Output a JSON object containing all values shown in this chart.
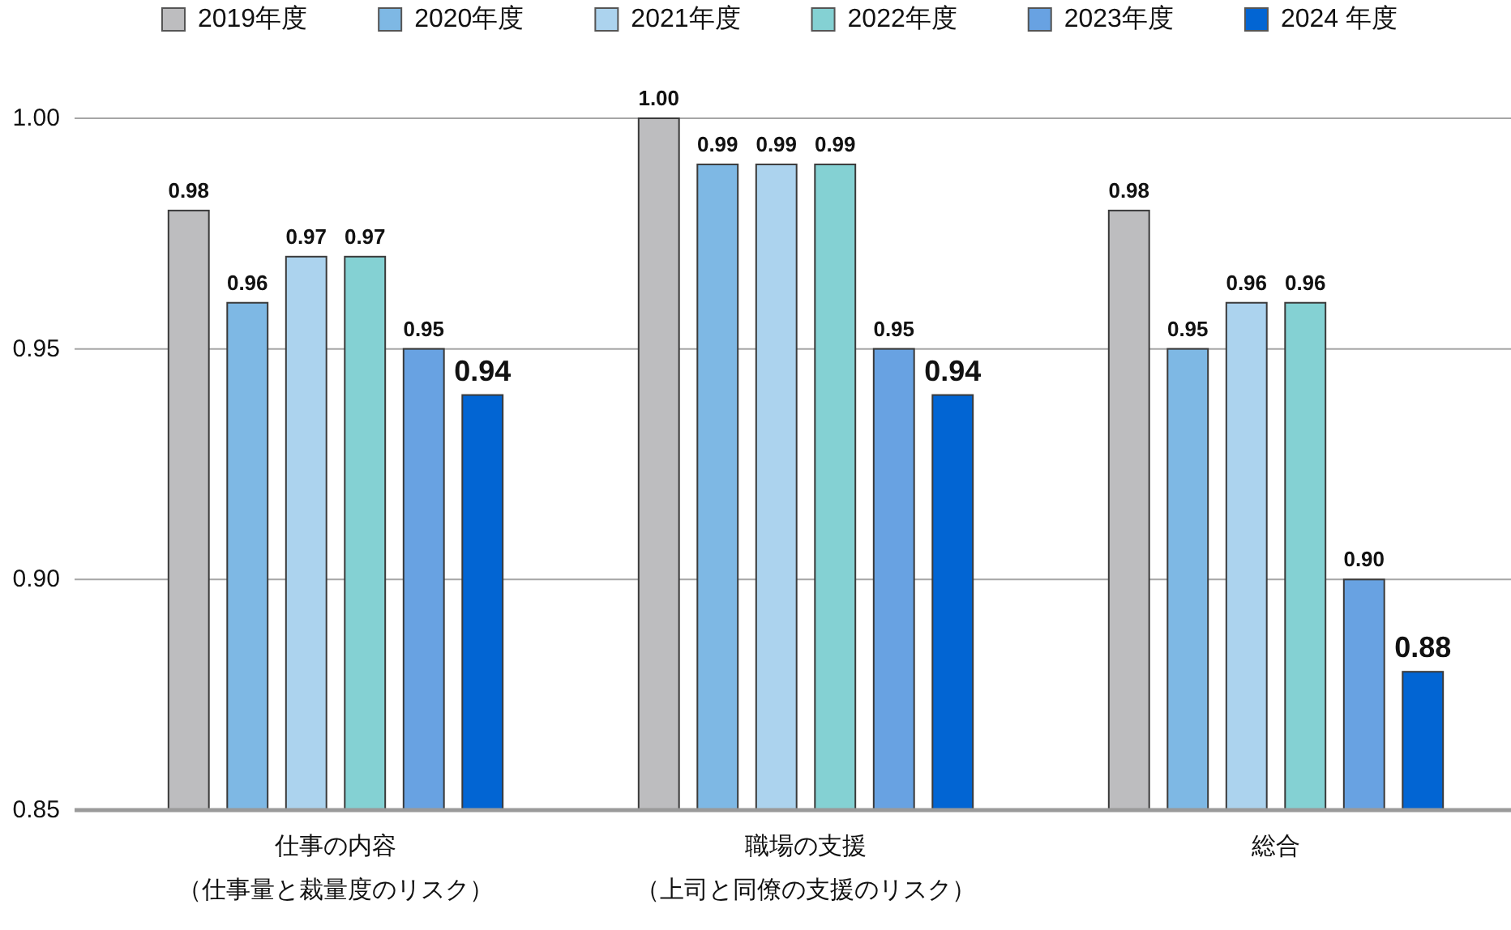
{
  "chart_data": {
    "type": "bar",
    "categories": [
      "仕事の内容（仕事量と裁量度のリスク）",
      "職場の支援（上司と同僚の支援のリスク）",
      "総合"
    ],
    "series": [
      {
        "name": "2019年度",
        "color": "#bdbdbf",
        "values": [
          0.98,
          1.0,
          0.98
        ],
        "value_labels": [
          "0.98",
          "1.00",
          "0.98"
        ]
      },
      {
        "name": "2020年度",
        "color": "#7eb8e4",
        "values": [
          0.96,
          0.99,
          0.95
        ],
        "value_labels": [
          "0.96",
          "0.99",
          "0.95"
        ]
      },
      {
        "name": "2021年度",
        "color": "#acd3ee",
        "values": [
          0.97,
          0.99,
          0.96
        ],
        "value_labels": [
          "0.97",
          "0.99",
          "0.96"
        ]
      },
      {
        "name": "2022年度",
        "color": "#84d1d3",
        "values": [
          0.97,
          0.99,
          0.96
        ],
        "value_labels": [
          "0.97",
          "0.99",
          "0.96"
        ]
      },
      {
        "name": "2023年度",
        "color": "#68a2e2",
        "values": [
          0.95,
          0.95,
          0.9
        ],
        "value_labels": [
          "0.95",
          "0.95",
          "0.90"
        ]
      },
      {
        "name": "2024 年度",
        "color": "#0265d3",
        "values": [
          0.94,
          0.94,
          0.88
        ],
        "value_labels": [
          "0.94",
          "0.94",
          "0.88"
        ]
      }
    ],
    "ylim": [
      0.85,
      1.0
    ],
    "yticks": [
      0.85,
      {
        "value": 0.9,
        "label": "0.90"
      },
      0.95,
      {
        "value": 1.0,
        "label": "1.00"
      }
    ],
    "grid": "y",
    "legend": "top"
  }
}
